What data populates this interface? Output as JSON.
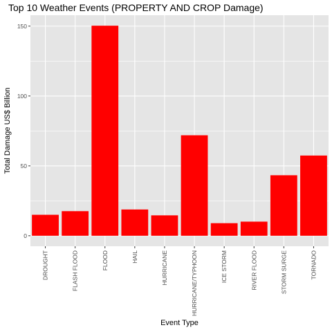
{
  "chart_data": {
    "type": "bar",
    "title": "Top 10 Weather Events (PROPERTY AND CROP Damage)",
    "xlabel": "Event Type",
    "ylabel": "Total Damage US$ Billion",
    "categories": [
      "DROUGHT",
      "FLASH FLOOD",
      "FLOOD",
      "HAIL",
      "HURRICANE",
      "HURRICANE/TYPHOON",
      "ICE STORM",
      "RIVER FLOOD",
      "STORM SURGE",
      "TORNADO"
    ],
    "values": [
      15.0,
      17.6,
      150.3,
      18.8,
      14.6,
      71.9,
      9.0,
      10.1,
      43.3,
      57.4
    ],
    "ylim": [
      -7.5,
      157.8
    ],
    "yticks": [
      0,
      50,
      100,
      150
    ],
    "ytick_labels": [
      "0",
      "50",
      "100",
      "150"
    ],
    "grid": true,
    "bar_color": "#ff0000",
    "panel_background": "#e5e5e5",
    "grid_color": "#ffffff"
  }
}
